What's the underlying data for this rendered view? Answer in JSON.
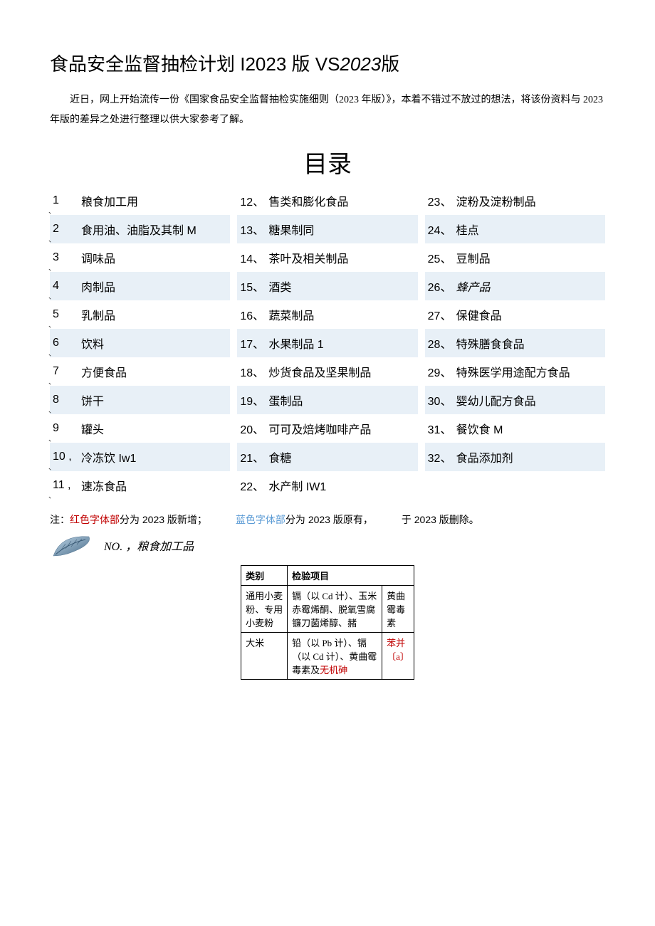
{
  "colors": {
    "background": "#ffffff",
    "text": "#000000",
    "shade_bg": "#e8f0f7",
    "red": "#c00000",
    "blue": "#5b9bd5",
    "leaf_fill": "#7fa8c9",
    "leaf_stroke": "#4a6d8a"
  },
  "typography": {
    "title_fontsize": 26,
    "intro_fontsize": 14,
    "toc_title_fontsize": 34,
    "toc_item_fontsize": 16,
    "note_fontsize": 14,
    "table_fontsize": 13
  },
  "title": {
    "main": "食品安全监督抽检计划 I2023 版 VS",
    "italic": "2023",
    "suffix": "版"
  },
  "intro": "近日，网上开始流传一份《国家食品安全监督抽检实施细则（2023 年版）》，本着不错过不放过的想法，将该份资料与 2023 年版的差异之处进行整理以供大家参考了解。",
  "toc_title": "目录",
  "toc": {
    "col1": [
      {
        "num": "1",
        "sep": "",
        "tick": "、",
        "label": "粮食加工用",
        "shade": false
      },
      {
        "num": "2",
        "sep": "",
        "tick": "、",
        "label": "食用油、油脂及其制 M",
        "shade": true
      },
      {
        "num": "3",
        "sep": "",
        "tick": "、",
        "label": "调味品",
        "shade": false
      },
      {
        "num": "4",
        "sep": "",
        "tick": "、",
        "label": "肉制品",
        "shade": true
      },
      {
        "num": "5",
        "sep": "",
        "tick": "、",
        "label": "乳制品",
        "shade": false
      },
      {
        "num": "6",
        "sep": "",
        "tick": "、",
        "label": "饮料",
        "shade": true
      },
      {
        "num": "7",
        "sep": "",
        "tick": "、",
        "label": "方便食品",
        "shade": false
      },
      {
        "num": "8",
        "sep": "",
        "tick": "、",
        "label": "饼干",
        "shade": true
      },
      {
        "num": "9",
        "sep": "",
        "tick": "、",
        "label": "罐头",
        "shade": false
      },
      {
        "num": "10",
        "sep": " ,",
        "tick": "、",
        "label": "冷冻饮 Iw1",
        "shade": true
      },
      {
        "num": "11",
        "sep": " ,",
        "tick": "、",
        "label": "速冻食品",
        "shade": false
      }
    ],
    "col2": [
      {
        "num": "12、",
        "label": "售类和膨化食品",
        "shade": false
      },
      {
        "num": "13、",
        "label": "糖果制同",
        "shade": true
      },
      {
        "num": "14、",
        "label": "茶叶及相关制品",
        "shade": false
      },
      {
        "num": "15、",
        "label": "酒类",
        "shade": true
      },
      {
        "num": "16、",
        "label": "蔬菜制品",
        "shade": false
      },
      {
        "num": "17、",
        "label": "水果制品 1",
        "shade": true
      },
      {
        "num": "18、",
        "label": "炒货食品及坚果制品",
        "shade": false
      },
      {
        "num": "19、",
        "label": "蛋制品",
        "shade": true
      },
      {
        "num": "20、",
        "label": "可可及焙烤咖啡产品",
        "shade": false
      },
      {
        "num": "21、",
        "label": "食糖",
        "shade": true
      },
      {
        "num": "22、",
        "label": "水产制 IW1",
        "shade": false
      }
    ],
    "col3": [
      {
        "num": "23、",
        "label": "淀粉及淀粉制品",
        "shade": false
      },
      {
        "num": "24、",
        "label": "桂点",
        "shade": true
      },
      {
        "num": "25、",
        "label": "豆制品",
        "shade": false
      },
      {
        "num": "26、",
        "label": "蜂产品",
        "shade": true,
        "italic": true
      },
      {
        "num": "27、",
        "label": "保健食品",
        "shade": false
      },
      {
        "num": "28、",
        "label": "特殊膳食食品",
        "shade": true
      },
      {
        "num": "29、",
        "label": "特殊医学用途配方食品",
        "shade": false
      },
      {
        "num": "30、",
        "label": "婴幼儿配方食品",
        "shade": true
      },
      {
        "num": "31、",
        "label": "餐饮食 M",
        "shade": false
      },
      {
        "num": "32、",
        "label": "食品添加剂",
        "shade": true
      }
    ]
  },
  "note": {
    "prefix": "注：",
    "red_part": "红色字体部",
    "after_red": "分为 2023 版新增；",
    "blue_part": "蓝色字体部",
    "after_blue": "分为 2023 版原有，",
    "tail": "于 2023 版删除。"
  },
  "section1": {
    "header": "NO. ，粮食加工品",
    "table": {
      "headers": {
        "cat": "类别",
        "items": "检验项目"
      },
      "rows": [
        {
          "cat": "通用小麦粉、专用小麦粉",
          "items_main": "镉（以 Cd 计）、玉米赤霉烯酮、脱氧雪腐 镰刀菌烯醇、赭",
          "items_side": "黄曲霉毒素",
          "items_red": ""
        },
        {
          "cat": "大米",
          "items_main": "铅（以 Pb 计）、镉（以 Cd 计）、黄曲霉毒素及",
          "items_side_red": "苯并〔a〕",
          "items_red": "无机砷"
        }
      ]
    }
  }
}
